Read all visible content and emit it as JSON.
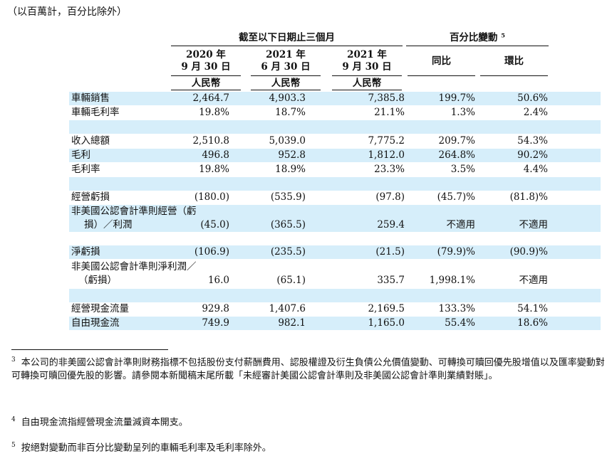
{
  "unit_note": "（以百萬計，百分比除外）",
  "header": {
    "group_three_months": "截至以下日期止三個月",
    "group_pct_change": "百分比變動 ⁵",
    "col1_line1": "2020 年",
    "col1_line2": "9 月 30 日",
    "col2_line1": "2021 年",
    "col2_line2": "6 月 30 日",
    "col3_line1": "2021 年",
    "col3_line2": "9 月 30 日",
    "currency": "人民幣",
    "yoy": "同比",
    "qoq": "環比"
  },
  "rows": [
    {
      "label": "車輛銷售",
      "v1": "2,464.7",
      "v2": "4,903.3",
      "v3": "7,385.8",
      "yoy": "199.7%",
      "qoq": "50.6%"
    },
    {
      "label": "車輛毛利率",
      "v1": "19.8%",
      "v2": "18.7%",
      "v3": "21.1%",
      "yoy": "1.3%",
      "qoq": "2.4%"
    },
    {
      "label": "收入總額",
      "v1": "2,510.8",
      "v2": "5,039.0",
      "v3": "7,775.2",
      "yoy": "209.7%",
      "qoq": "54.3%"
    },
    {
      "label": "毛利",
      "v1": "496.8",
      "v2": "952.8",
      "v3": "1,812.0",
      "yoy": "264.8%",
      "qoq": "90.2%"
    },
    {
      "label": "毛利率",
      "v1": "19.8%",
      "v2": "18.9%",
      "v3": "23.3%",
      "yoy": "3.5%",
      "qoq": "4.4%"
    },
    {
      "label": "經營虧損",
      "v1": "(180.0)",
      "v2": "(535.9)",
      "v3": "(97.8)",
      "yoy": "(45.7)%",
      "qoq": "(81.8)%"
    },
    {
      "label": "非美國公認會計準則經營（虧",
      "label2": "損）／利潤",
      "v1": "(45.0)",
      "v2": "(365.5)",
      "v3": "259.4",
      "yoy": "不適用",
      "qoq": "不適用"
    },
    {
      "label": "淨虧損",
      "v1": "(106.9)",
      "v2": "(235.5)",
      "v3": "(21.5)",
      "yoy": "(79.9)%",
      "qoq": "(90.9)%"
    },
    {
      "label": "非美國公認會計準則淨利潤／",
      "label2": "（虧損）",
      "v1": "16.0",
      "v2": "(65.1)",
      "v3": "335.7",
      "yoy": "1,998.1%",
      "qoq": "不適用"
    },
    {
      "label": "經營現金流量",
      "v1": "929.8",
      "v2": "1,407.6",
      "v3": "2,169.5",
      "yoy": "133.3%",
      "qoq": "54.1%"
    },
    {
      "label": "自由現金流",
      "v1": "749.9",
      "v2": "982.1",
      "v3": "1,165.0",
      "yoy": "55.4%",
      "qoq": "18.6%"
    }
  ],
  "footnotes": {
    "fn3_mark": "3",
    "fn3_text": "本公司的非美國公認會計準則財務指標不包括股份支付薪酬費用、認股權證及衍生負債公允價值變動、可轉換可贖回優先股增值以及匯率變動對可轉換可贖回優先股的影響。請參閱本新聞稿末尾所載「未經審計美國公認會計準則及非美國公認會計準則業績對賬」。",
    "fn4_mark": "4",
    "fn4_text": "自由現金流指經營現金流量減資本開支。",
    "fn5_mark": "5",
    "fn5_text": "按絕對變動而非百分比變動呈列的車輛毛利率及毛利率除外。"
  }
}
